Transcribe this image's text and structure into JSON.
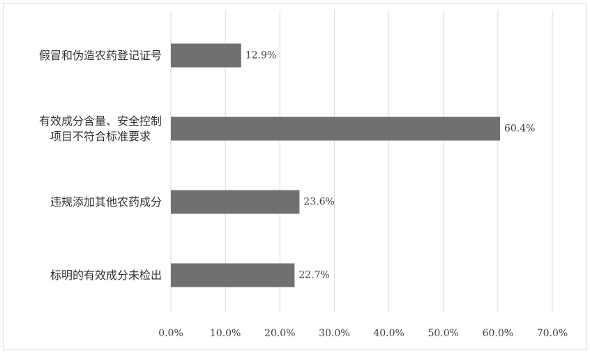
{
  "chart_data": {
    "type": "bar",
    "orientation": "horizontal",
    "categories": [
      "假冒和伪造农药登记证号",
      "有效成分含量、安全控制\n项目不符合标准要求",
      "违规添加其他农药成分",
      "标明的有效成分未检出"
    ],
    "values": [
      12.9,
      60.4,
      23.6,
      22.7
    ],
    "value_labels": [
      "12.9%",
      "60.4%",
      "23.6%",
      "22.7%"
    ],
    "color": "#707070",
    "xlim": [
      0,
      70
    ],
    "xticks": [
      {
        "value": 0,
        "label": "0.0%"
      },
      {
        "value": 10,
        "label": "10.0%"
      },
      {
        "value": 20,
        "label": "20.0%"
      },
      {
        "value": 30,
        "label": "30.0%"
      },
      {
        "value": 40,
        "label": "40.0%"
      },
      {
        "value": 50,
        "label": "50.0%"
      },
      {
        "value": 60,
        "label": "60.0%"
      },
      {
        "value": 70,
        "label": "70.0%"
      }
    ],
    "grid": true
  }
}
